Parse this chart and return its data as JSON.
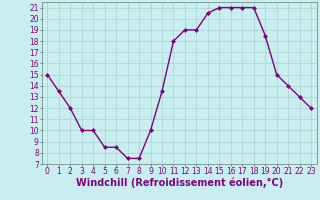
{
  "x": [
    0,
    1,
    2,
    3,
    4,
    5,
    6,
    7,
    8,
    9,
    10,
    11,
    12,
    13,
    14,
    15,
    16,
    17,
    18,
    19,
    20,
    21,
    22,
    23
  ],
  "y": [
    15,
    13.5,
    12,
    10,
    10,
    8.5,
    8.5,
    7.5,
    7.5,
    10,
    13.5,
    18,
    19,
    19,
    20.5,
    21,
    21,
    21,
    21,
    18.5,
    15,
    14,
    13,
    12
  ],
  "line_color": "#800080",
  "marker": "D",
  "marker_size": 2.0,
  "bg_color": "#c8eef0",
  "grid_color": "#b0d4d4",
  "xlabel": "Windchill (Refroidissement éolien,°C)",
  "xlabel_fontsize": 7,
  "xlim": [
    -0.5,
    23.5
  ],
  "ylim": [
    7,
    21.5
  ],
  "yticks": [
    7,
    8,
    9,
    10,
    11,
    12,
    13,
    14,
    15,
    16,
    17,
    18,
    19,
    20,
    21
  ],
  "xticks": [
    0,
    1,
    2,
    3,
    4,
    5,
    6,
    7,
    8,
    9,
    10,
    11,
    12,
    13,
    14,
    15,
    16,
    17,
    18,
    19,
    20,
    21,
    22,
    23
  ],
  "tick_fontsize": 5.5,
  "line_width": 1.0
}
